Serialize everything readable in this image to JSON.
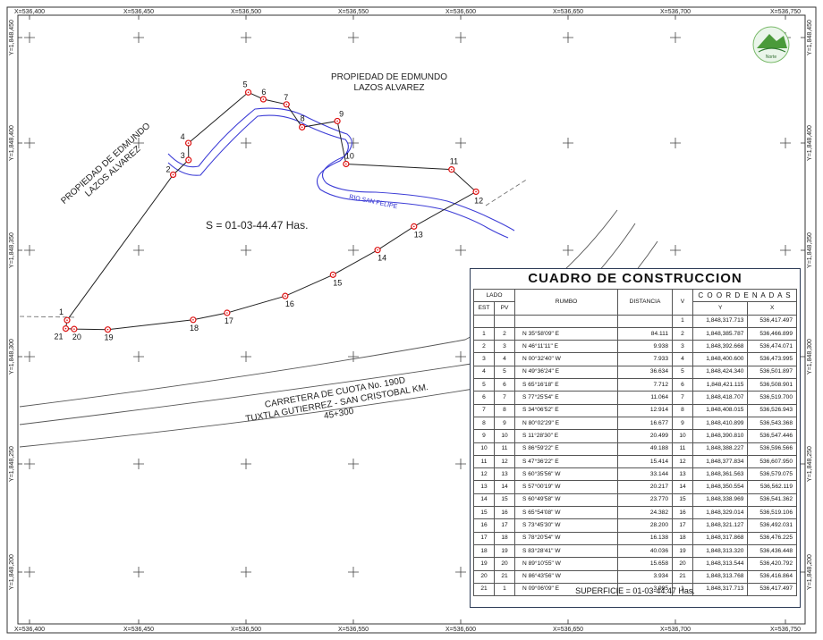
{
  "grid": {
    "x_labels": [
      "X=536,400",
      "X=536,450",
      "X=536,500",
      "X=536,550",
      "X=536,600",
      "X=536,650",
      "X=536,700",
      "X=536,750"
    ],
    "y_labels": [
      "Y=1,848,450",
      "Y=1,848,400",
      "Y=1,848,350",
      "Y=1,848,300",
      "Y=1,848,250",
      "Y=1,848,200"
    ]
  },
  "labels": {
    "owner_north_line1": "PROPIEDAD DE EDMUNDO",
    "owner_north_line2": "LAZOS ALVAREZ",
    "owner_west_line1": "PROPIEDAD DE EDMUNDO",
    "owner_west_line2": "LAZOS ALVAREZ",
    "area": "S = 01-03-44.47 Has.",
    "river": "RIO SAN FELIPE",
    "road_line1": "CARRETERA DE CUOTA No. 190D",
    "road_line2": "TUXTLA GUTIERREZ - SAN CRISTOBAL KM.",
    "road_line3": "45+300",
    "north_logo": "Norte"
  },
  "points": [
    {
      "id": "1",
      "x": 536417.497,
      "y": 1848317.713
    },
    {
      "id": "2",
      "x": 536466.899,
      "y": 1848385.787
    },
    {
      "id": "3",
      "x": 536474.071,
      "y": 1848392.668
    },
    {
      "id": "4",
      "x": 536473.995,
      "y": 1848400.6
    },
    {
      "id": "5",
      "x": 536501.897,
      "y": 1848424.34
    },
    {
      "id": "6",
      "x": 536508.901,
      "y": 1848421.115
    },
    {
      "id": "7",
      "x": 536519.7,
      "y": 1848418.707
    },
    {
      "id": "8",
      "x": 536526.943,
      "y": 1848408.015
    },
    {
      "id": "9",
      "x": 536543.368,
      "y": 1848410.899
    },
    {
      "id": "10",
      "x": 536547.446,
      "y": 1848390.81
    },
    {
      "id": "11",
      "x": 536596.566,
      "y": 1848388.227
    },
    {
      "id": "12",
      "x": 536607.95,
      "y": 1848377.834
    },
    {
      "id": "13",
      "x": 536579.075,
      "y": 1848361.563
    },
    {
      "id": "14",
      "x": 536562.119,
      "y": 1848350.554
    },
    {
      "id": "15",
      "x": 536541.362,
      "y": 1848338.969
    },
    {
      "id": "16",
      "x": 536519.106,
      "y": 1848329.014
    },
    {
      "id": "17",
      "x": 536492.031,
      "y": 1848321.127
    },
    {
      "id": "18",
      "x": 536476.225,
      "y": 1848317.868
    },
    {
      "id": "19",
      "x": 536436.448,
      "y": 1848313.32
    },
    {
      "id": "20",
      "x": 536420.792,
      "y": 1848313.544
    },
    {
      "id": "21",
      "x": 536416.864,
      "y": 1848313.768
    }
  ],
  "table": {
    "title": "CUADRO DE CONSTRUCCION",
    "headers": {
      "lado": "LADO",
      "est": "EST",
      "pv": "PV",
      "rumbo": "RUMBO",
      "distancia": "DISTANCIA",
      "v": "V",
      "coordenadas": "C O O R D E N A D A S",
      "y": "Y",
      "x": "X"
    },
    "first_row": {
      "v": "1",
      "y": "1,848,317.713",
      "x": "536,417.497"
    },
    "rows": [
      {
        "est": "1",
        "pv": "2",
        "rumbo": "N  35°58'09\"  E",
        "dist": "84.111",
        "v": "2",
        "y": "1,848,385.787",
        "x": "536,466.899"
      },
      {
        "est": "2",
        "pv": "3",
        "rumbo": "N  46°11'11\"  E",
        "dist": "9.938",
        "v": "3",
        "y": "1,848,392.668",
        "x": "536,474.071"
      },
      {
        "est": "3",
        "pv": "4",
        "rumbo": "N  00°32'40\"  W",
        "dist": "7.933",
        "v": "4",
        "y": "1,848,400.600",
        "x": "536,473.995"
      },
      {
        "est": "4",
        "pv": "5",
        "rumbo": "N  49°36'24\"  E",
        "dist": "36.634",
        "v": "5",
        "y": "1,848,424.340",
        "x": "536,501.897"
      },
      {
        "est": "5",
        "pv": "6",
        "rumbo": "S  65°16'18\"  E",
        "dist": "7.712",
        "v": "6",
        "y": "1,848,421.115",
        "x": "536,508.901"
      },
      {
        "est": "6",
        "pv": "7",
        "rumbo": "S  77°25'54\"  E",
        "dist": "11.064",
        "v": "7",
        "y": "1,848,418.707",
        "x": "536,519.700"
      },
      {
        "est": "7",
        "pv": "8",
        "rumbo": "S  34°06'52\"  E",
        "dist": "12.914",
        "v": "8",
        "y": "1,848,408.015",
        "x": "536,526.943"
      },
      {
        "est": "8",
        "pv": "9",
        "rumbo": "N  80°02'29\"  E",
        "dist": "16.677",
        "v": "9",
        "y": "1,848,410.899",
        "x": "536,543.368"
      },
      {
        "est": "9",
        "pv": "10",
        "rumbo": "S  11°28'30\"  E",
        "dist": "20.499",
        "v": "10",
        "y": "1,848,390.810",
        "x": "536,547.446"
      },
      {
        "est": "10",
        "pv": "11",
        "rumbo": "S  86°59'22\"  E",
        "dist": "49.188",
        "v": "11",
        "y": "1,848,388.227",
        "x": "536,596.566"
      },
      {
        "est": "11",
        "pv": "12",
        "rumbo": "S  47°36'22\"  E",
        "dist": "15.414",
        "v": "12",
        "y": "1,848,377.834",
        "x": "536,607.950"
      },
      {
        "est": "12",
        "pv": "13",
        "rumbo": "S  60°35'56\"  W",
        "dist": "33.144",
        "v": "13",
        "y": "1,848,361.563",
        "x": "536,579.075"
      },
      {
        "est": "13",
        "pv": "14",
        "rumbo": "S  57°00'19\"  W",
        "dist": "20.217",
        "v": "14",
        "y": "1,848,350.554",
        "x": "536,562.119"
      },
      {
        "est": "14",
        "pv": "15",
        "rumbo": "S  60°49'58\"  W",
        "dist": "23.770",
        "v": "15",
        "y": "1,848,338.969",
        "x": "536,541.362"
      },
      {
        "est": "15",
        "pv": "16",
        "rumbo": "S  65°54'08\"  W",
        "dist": "24.382",
        "v": "16",
        "y": "1,848,329.014",
        "x": "536,519.106"
      },
      {
        "est": "16",
        "pv": "17",
        "rumbo": "S  73°45'30\"  W",
        "dist": "28.200",
        "v": "17",
        "y": "1,848,321.127",
        "x": "536,492.031"
      },
      {
        "est": "17",
        "pv": "18",
        "rumbo": "S  78°20'54\"  W",
        "dist": "16.138",
        "v": "18",
        "y": "1,848,317.868",
        "x": "536,476.225"
      },
      {
        "est": "18",
        "pv": "19",
        "rumbo": "S  83°28'41\"  W",
        "dist": "40.036",
        "v": "19",
        "y": "1,848,313.320",
        "x": "536,436.448"
      },
      {
        "est": "19",
        "pv": "20",
        "rumbo": "N  89°10'55\"  W",
        "dist": "15.658",
        "v": "20",
        "y": "1,848,313.544",
        "x": "536,420.792"
      },
      {
        "est": "20",
        "pv": "21",
        "rumbo": "N  86°43'56\"  W",
        "dist": "3.934",
        "v": "21",
        "y": "1,848,313.768",
        "x": "536,416.864"
      },
      {
        "est": "21",
        "pv": "1",
        "rumbo": "N  09°06'09\"  E",
        "dist": "3.995",
        "v": "1",
        "y": "1,848,317.713",
        "x": "536,417.497"
      }
    ],
    "footer": "SUPERFICIE = 01-03-44.47 Has."
  }
}
